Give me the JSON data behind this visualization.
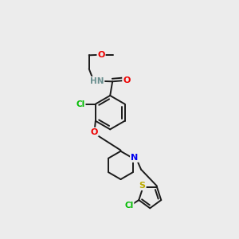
{
  "background_color": "#ececec",
  "atom_colors": {
    "C": "#000000",
    "H": "#6a8f8f",
    "N": "#0000ee",
    "O": "#ee0000",
    "S": "#bbaa00",
    "Cl": "#00bb00"
  },
  "bond_color": "#1a1a1a",
  "bond_width": 1.4,
  "figsize": [
    3.0,
    3.0
  ],
  "dpi": 100
}
